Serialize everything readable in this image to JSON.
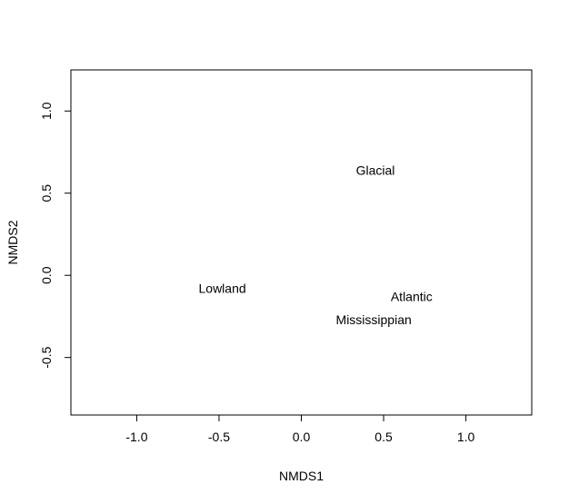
{
  "chart_data": {
    "type": "scatter",
    "title": "",
    "xlabel": "NMDS1",
    "ylabel": "NMDS2",
    "xlim": [
      -1.4,
      1.4
    ],
    "ylim": [
      -0.85,
      1.25
    ],
    "grid": false,
    "legend": "none",
    "x_ticks": [
      -1.0,
      -0.5,
      0.0,
      0.5,
      1.0
    ],
    "x_tick_labels": [
      "-1.0",
      "-0.5",
      "0.0",
      "0.5",
      "1.0"
    ],
    "y_ticks": [
      -0.5,
      0.0,
      0.5,
      1.0
    ],
    "y_tick_labels": [
      "-0.5",
      "0.0",
      "0.5",
      "1.0"
    ],
    "points": [
      {
        "label": "Glacial",
        "x": 0.45,
        "y": 0.64
      },
      {
        "label": "Lowland",
        "x": -0.48,
        "y": -0.08
      },
      {
        "label": "Atlantic",
        "x": 0.67,
        "y": -0.13
      },
      {
        "label": "Mississippian",
        "x": 0.44,
        "y": -0.27
      }
    ],
    "colors": {
      "text": "#000000",
      "axis": "#000000",
      "background": "#ffffff"
    }
  }
}
